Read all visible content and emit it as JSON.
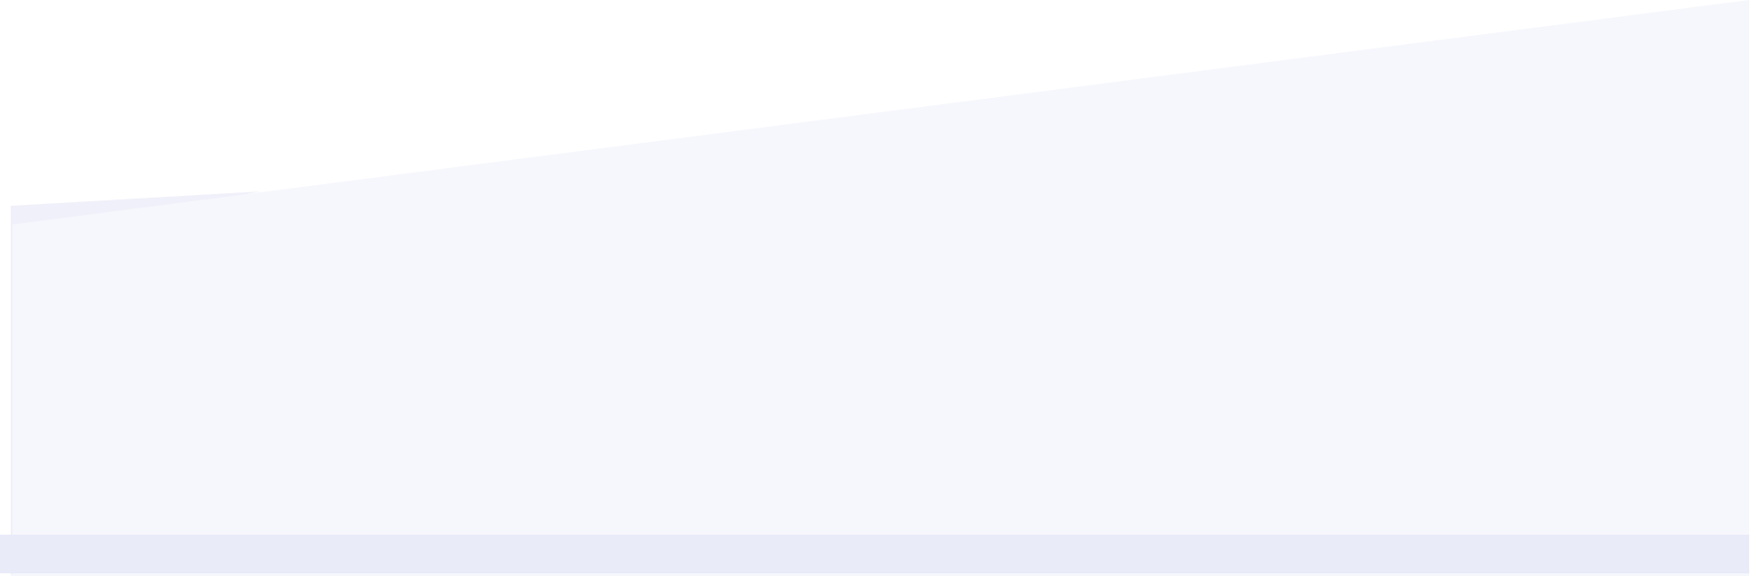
{
  "decoration": {
    "colors": {
      "background": "#ffffff",
      "back_wave": "#f0f0fa",
      "front_wave": "#f6f7fc",
      "bottom_band": "#e9ebf9"
    }
  }
}
